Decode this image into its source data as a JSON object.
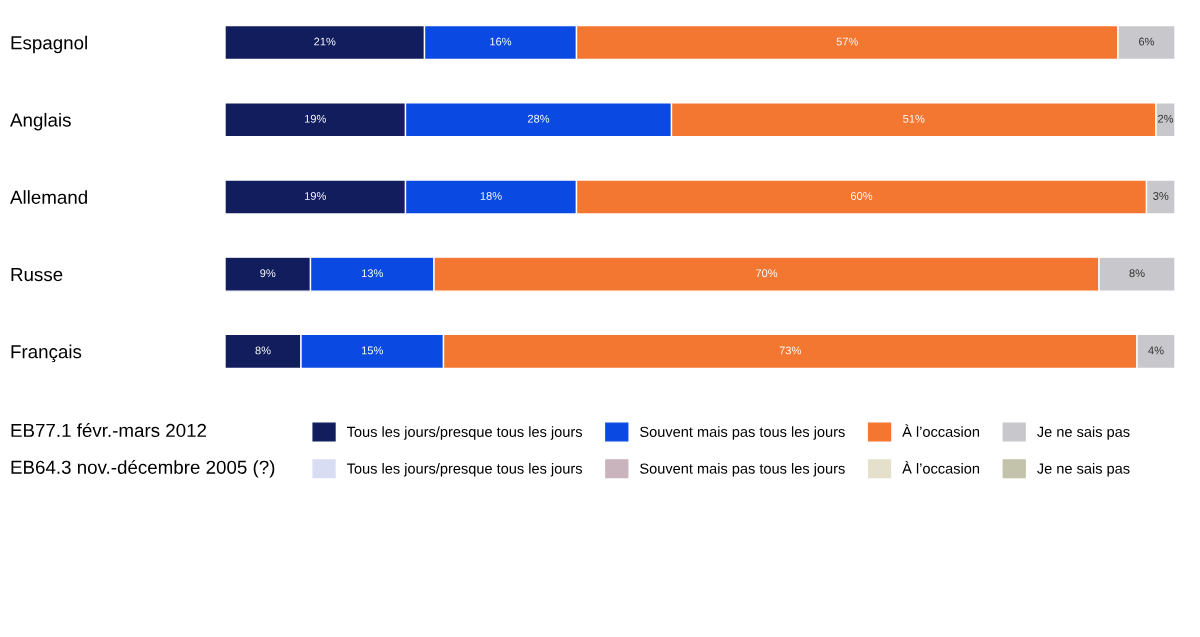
{
  "chart_data": {
    "type": "bar",
    "orientation": "horizontal",
    "stacked": true,
    "tick_labels": "y",
    "grid": false,
    "legend": "bottom",
    "categories": [
      "Espagnol",
      "Anglais",
      "Allemand",
      "Russe",
      "Français"
    ],
    "series": [
      {
        "name": "Tous les jours/presque tous les jours",
        "color": "#111d5c",
        "values": [
          21,
          19,
          19,
          9,
          8
        ],
        "value_labels": [
          "21%",
          "19%",
          "19%",
          "9%",
          "8%"
        ]
      },
      {
        "name": "Souvent mais pas tous les jours",
        "color": "#0b4ae2",
        "values": [
          16,
          28,
          18,
          13,
          15
        ],
        "value_labels": [
          "16%",
          "28%",
          "18%",
          "13%",
          "15%"
        ]
      },
      {
        "name": "À l’occasion",
        "color": "#f47731",
        "values": [
          57,
          51,
          60,
          70,
          73
        ],
        "value_labels": [
          "57%",
          "51%",
          "60%",
          "70%",
          "73%"
        ]
      },
      {
        "name": "Je ne sais pas",
        "color": "#c8c8cc",
        "values": [
          6,
          2,
          3,
          8,
          4
        ],
        "value_labels": [
          "6%",
          "2%",
          "3%",
          "8%",
          "4%"
        ]
      },
      {
        "name": "Tous les jours/presque tous les jours",
        "color": "#d9ddf3",
        "values": [
          null,
          null,
          null,
          null,
          null
        ]
      },
      {
        "name": "Souvent mais pas tous les jours",
        "color": "#c9b4bd",
        "values": [
          null,
          null,
          null,
          null,
          null
        ]
      },
      {
        "name": "À l’occasion",
        "color": "#e4e0cc",
        "values": [
          null,
          null,
          null,
          null,
          null
        ]
      },
      {
        "name": "Je ne sais pas",
        "color": "#c3c2ab",
        "values": [
          null,
          null,
          null,
          null,
          null
        ]
      }
    ],
    "annotations": [
      "EB77.1 févr.-mars 2012",
      "EB64.3 nov.-décembre 2005 (?)"
    ]
  }
}
